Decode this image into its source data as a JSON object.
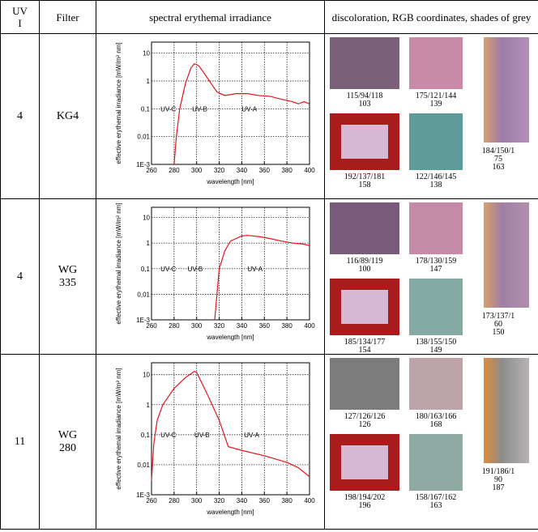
{
  "table": {
    "header": [
      "UV I",
      "Filter",
      "spectral erythemal irradiance",
      "discoloration, RGB coordinates, shades of grey"
    ],
    "rows": [
      {
        "uv": "4",
        "filter": "KG4",
        "chart": {
          "type": "line",
          "x_label": "wavelength [nm]",
          "y_label": "effective erythemal irradiance [mW/m² nm]",
          "annotations": [
            "UV-C",
            "UV-B",
            "UV-A"
          ],
          "log_y": true,
          "grid": true,
          "xlim": [
            260,
            400
          ],
          "ylim": [
            0.001,
            25
          ],
          "xticks": [
            260,
            280,
            300,
            320,
            340,
            360,
            380,
            400
          ],
          "yticks": [
            {
              "value": 0.001,
              "label": "1E-3"
            },
            {
              "value": 0.01,
              "label": "0,01"
            },
            {
              "value": 0.1,
              "label": "0,1"
            },
            1,
            10
          ],
          "x": [
            280,
            282,
            285,
            290,
            295,
            298,
            302,
            310,
            318,
            325,
            335,
            345,
            355,
            365,
            375,
            385,
            390,
            395,
            400
          ],
          "series": [
            {
              "color": "#e8141c",
              "values": [
                0.001,
                0.01,
                0.1,
                0.8,
                3,
                4.2,
                3.5,
                1.2,
                0.4,
                0.3,
                0.35,
                0.35,
                0.3,
                0.28,
                0.22,
                0.18,
                0.15,
                0.18,
                0.15
              ]
            }
          ]
        },
        "discoloration": [
          {
            "rgb": "115/94/118",
            "grey": "103"
          },
          {
            "rgb": "175/121/144",
            "grey": "139"
          },
          {
            "rgb": "192/137/181",
            "grey": "158"
          },
          {
            "rgb": "122/146/145",
            "grey": "138"
          },
          {
            "rgb": "184/150/175",
            "grey": "163"
          }
        ]
      },
      {
        "uv": "4",
        "filter": "WG 335",
        "chart": {
          "type": "line",
          "x_label": "wavelength [nm]",
          "y_label": "effective erythemal irradiance [mW/m² nm]",
          "annotations": [
            "UV-C",
            "UV-B",
            "UV-A"
          ],
          "log_y": true,
          "grid": true,
          "xlim": [
            260,
            400
          ],
          "ylim": [
            0.001,
            25
          ],
          "xticks": [
            260,
            280,
            300,
            320,
            340,
            360,
            380,
            400
          ],
          "yticks": [
            {
              "value": 0.001,
              "label": "1E-3"
            },
            {
              "value": 0.01,
              "label": "0,01"
            },
            {
              "value": 0.1,
              "label": "0,1"
            },
            1,
            10
          ],
          "x": [
            316,
            318,
            320,
            325,
            330,
            340,
            345,
            355,
            365,
            375,
            385,
            395,
            400
          ],
          "series": [
            {
              "color": "#e8141c",
              "values": [
                0.001,
                0.01,
                0.1,
                0.5,
                1.2,
                1.9,
                2,
                1.8,
                1.5,
                1.2,
                1,
                0.9,
                0.8
              ]
            }
          ]
        },
        "discoloration": [
          {
            "rgb": "116/89/119",
            "grey": "100"
          },
          {
            "rgb": "178/130/159",
            "grey": "147"
          },
          {
            "rgb": "185/134/177",
            "grey": "154"
          },
          {
            "rgb": "138/155/150",
            "grey": "149"
          },
          {
            "rgb": "173/137/160",
            "grey": "150"
          }
        ]
      },
      {
        "uv": "11",
        "filter": "WG 280",
        "chart": {
          "type": "line",
          "x_label": "wavelength [nm]",
          "y_label": "effective erythemal irradiance [mW/m² nm]",
          "annotations": [
            "UV-C",
            "UV-B",
            "UV-A"
          ],
          "log_y": true,
          "grid": true,
          "xlim": [
            260,
            400
          ],
          "ylim": [
            0.001,
            25
          ],
          "xticks": [
            260,
            280,
            300,
            320,
            340,
            360,
            380,
            400
          ],
          "yticks": [
            {
              "value": 0.001,
              "label": "1E-3"
            },
            {
              "value": 0.01,
              "label": "0,01"
            },
            {
              "value": 0.1,
              "label": "0,1"
            },
            1,
            10
          ],
          "x": [
            260,
            262,
            265,
            270,
            280,
            290,
            298,
            300,
            310,
            320,
            328,
            340,
            360,
            380,
            390,
            400
          ],
          "series": [
            {
              "color": "#e8141c",
              "values": [
                0.003,
                0.05,
                0.3,
                1,
                3.5,
                8,
                13,
                12,
                2,
                0.3,
                0.04,
                0.03,
                0.02,
                0.012,
                0.008,
                0.004
              ]
            }
          ]
        },
        "discoloration": [
          {
            "rgb": "127/126/126",
            "grey": "126"
          },
          {
            "rgb": "180/163/166",
            "grey": "168"
          },
          {
            "rgb": "198/194/202",
            "grey": "196"
          },
          {
            "rgb": "158/167/162",
            "grey": "163"
          },
          {
            "rgb": "191/186/190",
            "grey": "187"
          }
        ]
      }
    ]
  }
}
